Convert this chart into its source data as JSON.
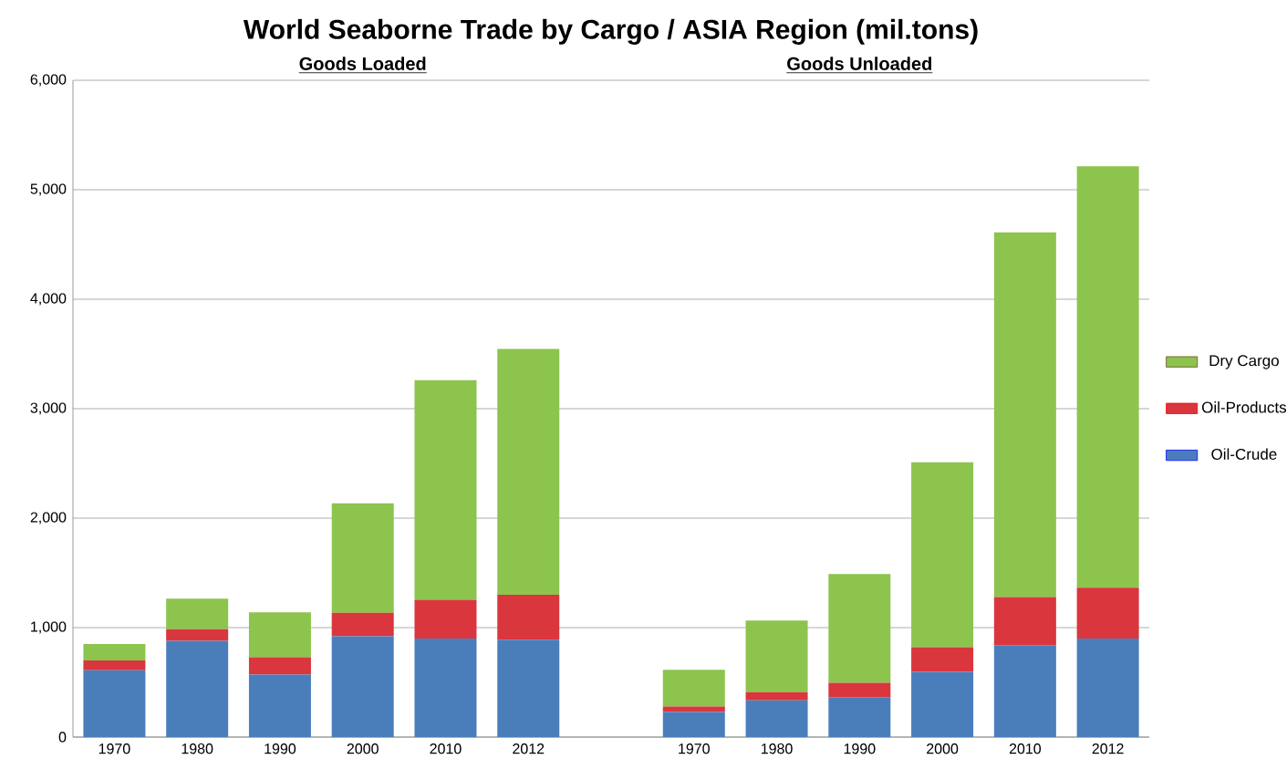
{
  "chart_data": {
    "type": "bar",
    "stacked": true,
    "title": "World Seaborne Trade by Cargo  /   ASIA Region  (mil.tons)",
    "annotations": [
      "Goods Loaded",
      "Goods Unloaded"
    ],
    "categories": [
      "1970",
      "1980",
      "1990",
      "2000",
      "2010",
      "2012",
      null,
      "1970",
      "1980",
      "1990",
      "2000",
      "2010",
      "2012"
    ],
    "series": [
      {
        "name": "Oil-Crude",
        "color": "#4a7ebb",
        "values": [
          610,
          880,
          570,
          920,
          900,
          890,
          null,
          230,
          335,
          365,
          595,
          840,
          900
        ]
      },
      {
        "name": "Oil-Products",
        "color": "#d9363e",
        "values": [
          90,
          105,
          160,
          215,
          355,
          410,
          null,
          50,
          75,
          130,
          225,
          440,
          465
        ]
      },
      {
        "name": "Dry Cargo",
        "color": "#8cc44e",
        "values": [
          150,
          280,
          410,
          1000,
          2005,
          2245,
          null,
          335,
          655,
          995,
          1690,
          3330,
          3850
        ]
      }
    ],
    "ylim": [
      0,
      6000
    ],
    "yticks": [
      0,
      {
        "value": 1000,
        "label": "1,000"
      },
      {
        "value": 2000,
        "label": "2,000"
      },
      {
        "value": 3000,
        "label": "3,000"
      },
      {
        "value": 4000,
        "label": "4,000"
      },
      {
        "value": 5000,
        "label": "5,000"
      },
      {
        "value": 6000,
        "label": "6,000"
      }
    ],
    "grid": "y",
    "legend": "right"
  }
}
